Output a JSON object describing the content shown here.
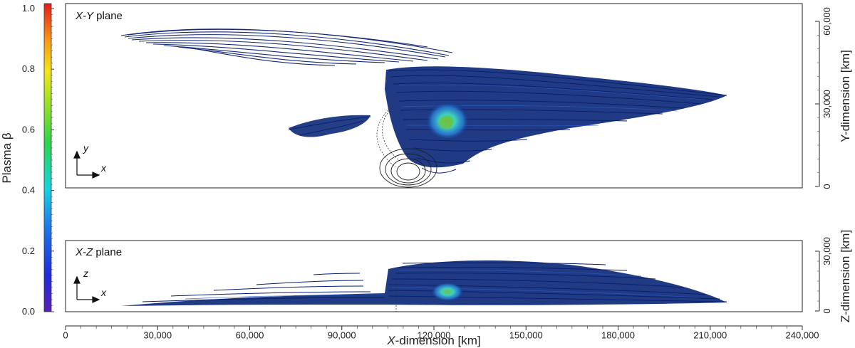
{
  "colorbar": {
    "title": "Plasma β",
    "ticks": [
      "1.0",
      "0.8",
      "0.6",
      "0.4",
      "0.2",
      "0.0"
    ]
  },
  "panels": {
    "xy": {
      "label_italic": "X-Y",
      "label_rest": " plane",
      "axis_title": "Y-dimension [km]",
      "ticks": [
        "60,000",
        "30,000",
        "0"
      ],
      "arrow_vertical": "y",
      "arrow_horizontal": "x"
    },
    "xz": {
      "label_italic": "X-Z",
      "label_rest": " plane",
      "axis_title": "Z-dimension [km]",
      "ticks": [
        "30,000",
        "0"
      ],
      "arrow_vertical": "z",
      "arrow_horizontal": "x"
    }
  },
  "x_axis": {
    "title": "X-dimension [km]",
    "ticks": [
      "0",
      "30,000",
      "60,000",
      "90,000",
      "120,000",
      "150,000",
      "180,000",
      "210,000",
      "240,000"
    ]
  },
  "colors": {
    "field_lines": "#0a1f6e",
    "hot_spot": "#3fd0c0",
    "core": "#6fc23a"
  }
}
